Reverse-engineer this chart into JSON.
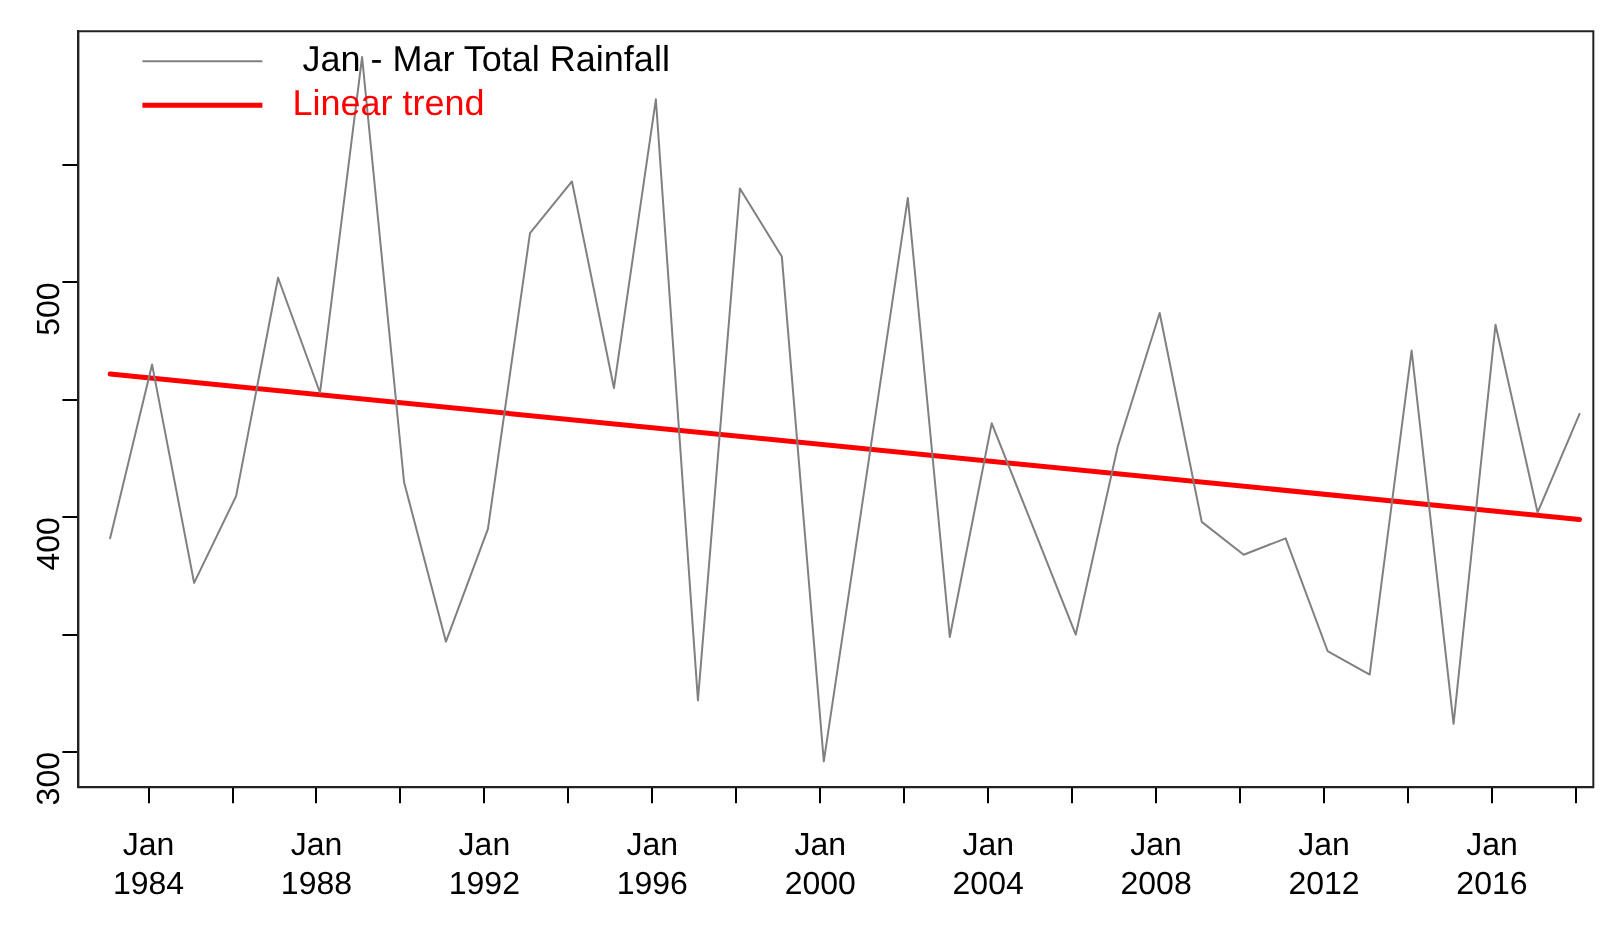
{
  "chart_data": {
    "type": "line",
    "x": [
      "1983-02",
      "1984-02",
      "1985-02",
      "1986-02",
      "1987-02",
      "1988-02",
      "1989-02",
      "1990-02",
      "1991-02",
      "1992-02",
      "1993-02",
      "1994-02",
      "1995-02",
      "1996-02",
      "1997-02",
      "1998-02",
      "1999-02",
      "2000-02",
      "2001-02",
      "2002-02",
      "2003-02",
      "2004-02",
      "2005-02",
      "2006-02",
      "2007-02",
      "2008-02",
      "2009-02",
      "2010-02",
      "2011-02",
      "2012-02",
      "2013-02",
      "2014-02",
      "2015-02",
      "2016-02",
      "2017-02",
      "2018-02"
    ],
    "series": [
      {
        "name": "Jan - Mar Total Rainfall",
        "color": "#808080",
        "values": [
          391,
          465,
          372,
          409,
          502,
          453,
          596,
          415,
          347,
          395,
          521,
          543,
          455,
          578,
          322,
          540,
          511,
          296,
          416,
          536,
          349,
          440,
          395,
          350,
          430,
          487,
          398,
          384,
          391,
          343,
          333,
          471,
          312,
          482,
          402,
          444
        ]
      },
      {
        "name": "Linear trend",
        "color": "#ff0000",
        "type": "line",
        "x": [
          "1983-02",
          "2018-02"
        ],
        "values": [
          461,
          399
        ]
      }
    ],
    "xlim": [
      "1982-05",
      "2018-06"
    ],
    "xticks": [
      {
        "value": "1984-01",
        "label": "Jan\n1984"
      },
      {
        "value": "1986-01",
        "label": null
      },
      {
        "value": "1988-01",
        "label": "Jan\n1988"
      },
      {
        "value": "1990-01",
        "label": null
      },
      {
        "value": "1992-01",
        "label": "Jan\n1992"
      },
      {
        "value": "1994-01",
        "label": null
      },
      {
        "value": "1996-01",
        "label": "Jan\n1996"
      },
      {
        "value": "1998-01",
        "label": null
      },
      {
        "value": "2000-01",
        "label": "Jan\n2000"
      },
      {
        "value": "2002-01",
        "label": null
      },
      {
        "value": "2004-01",
        "label": "Jan\n2004"
      },
      {
        "value": "2006-01",
        "label": null
      },
      {
        "value": "2008-01",
        "label": "Jan\n2008"
      },
      {
        "value": "2010-01",
        "label": null
      },
      {
        "value": "2012-01",
        "label": "Jan\n2012"
      },
      {
        "value": "2014-01",
        "label": null
      },
      {
        "value": "2016-01",
        "label": "Jan\n2016"
      },
      {
        "value": "2018-01",
        "label": null
      }
    ],
    "ylim": [
      285,
      607
    ],
    "yticks": [
      300,
      {
        "value": 350,
        "label": null
      },
      400,
      {
        "value": 450,
        "label": null
      },
      500,
      {
        "value": 550,
        "label": null
      }
    ],
    "legend": "top left",
    "grid": false,
    "marker": "none",
    "line_style": "solid"
  }
}
